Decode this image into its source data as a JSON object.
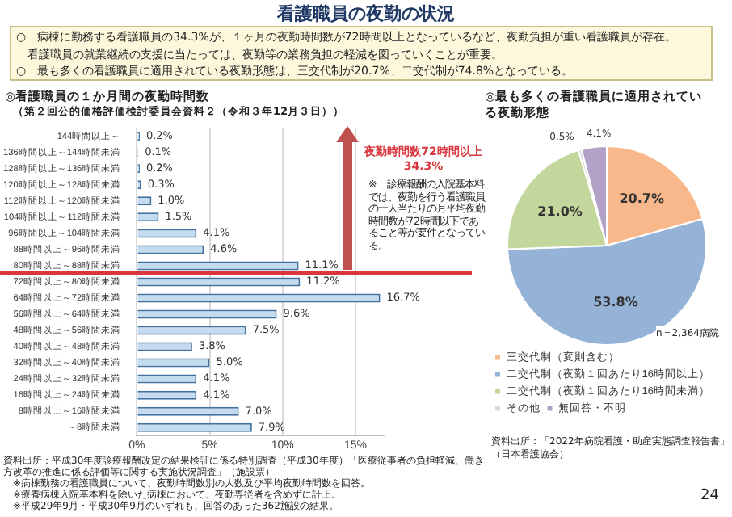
{
  "chart_data": [
    {
      "type": "other",
      "title": "看護職員の夜勤の状況",
      "annotations": [
        "○　病棟に勤務する看護職員の34.3%が、１ヶ月の夜勤時間数が72時間以上となっているなど、夜勤負担が重い看護職員が存在。",
        "　看護職員の就業継続の支援に当たっては、夜勤等の業務負担の軽減を図っていくことが重要。",
        "○　最も多くの看護職員に適用されている夜勤形態は、三交代制が20.7%、二交代制が74.8%となっている。",
        "24"
      ]
    },
    {
      "type": "bar",
      "orientation": "horizontal",
      "title": "◎看護職員の１か月間の夜勤時間数",
      "subtitle": "（第２回公的価格評価検討委員会資料２（令和３年12月３日））",
      "categories": [
        "144時間以上～",
        "136時間以上～144時間未満",
        "128時間以上～136時間未満",
        "120時間以上～128時間未満",
        "112時間以上～120時間未満",
        "104時間以上～112時間未満",
        "96時間以上～104時間未満",
        "88時間以上～96時間未満",
        "80時間以上～88時間未満",
        "72時間以上～80時間未満",
        "64時間以上～72時間未満",
        "56時間以上～64時間未満",
        "48時間以上～56時間未満",
        "40時間以上～48時間未満",
        "32時間以上～40時間未満",
        "24時間以上～32時間未満",
        "16時間以上～24時間未満",
        "8時間以上～16時間未満",
        "～8時間未満"
      ],
      "values": [
        0.2,
        0.1,
        0.2,
        0.3,
        1.0,
        1.5,
        4.1,
        4.6,
        11.1,
        11.2,
        16.7,
        9.6,
        7.5,
        3.8,
        5.0,
        4.1,
        4.1,
        7.0,
        7.9
      ],
      "value_labels": [
        "0.2%",
        "0.1%",
        "0.2%",
        "0.3%",
        "1.0%",
        "1.5%",
        "4.1%",
        "4.6%",
        "11.1%",
        "11.2%",
        "16.7%",
        "9.6%",
        "7.5%",
        "3.8%",
        "5.0%",
        "4.1%",
        "4.1%",
        "7.0%",
        "7.9%"
      ],
      "color": "#c5dcf0",
      "xlim": [
        0,
        17
      ],
      "xticks": [
        {
          "value": 0,
          "label": "0%"
        },
        {
          "value": 5,
          "label": "5%"
        },
        {
          "value": 10,
          "label": "10%"
        },
        {
          "value": 15,
          "label": "15%"
        }
      ],
      "grid": "x",
      "legend": false,
      "ref_lines": [
        {
          "axis": "y",
          "value": "80時間以上～88時間未満",
          "color": "#d9363e"
        }
      ],
      "annotations": [
        "夜勤時間数72時間以上\n34.3%",
        "※　診療報酬の入院基本料では、夜勤を行う看護職員の一人当たりの月平均夜勤時間数が72時間以下であること等が要件となっている。",
        "資料出所：平成30年度診療報酬改定の結果検証に係る特別調査（平成30年度）「医療従事者の負担軽減、働き方改革の推進に係る評価等に関する実施状況調査」（施設票）",
        "　※病棟勤務の看護職員について、夜勤時間数別の人数及び平均夜勤時間数を回答。",
        "　※療養病棟入院基本料を除いた病棟において、夜勤専従者を含めずに計上。",
        "　※平成29年9月・平成30年9月のいずれも、回答のあった362施設の結果。"
      ]
    },
    {
      "type": "pie",
      "title": "◎最も多くの看護職員に適用されている夜勤形態",
      "categories": [
        "三交代制（変則含む）",
        "二交代制（夜勤１回あたり16時間以上）",
        "二交代制（夜勤１回あたり16時間未満）",
        "その他",
        "無回答・不明"
      ],
      "values": [
        20.7,
        53.8,
        21.0,
        0.5,
        4.1
      ],
      "colors": [
        "#f8b88b",
        "#95b3d7",
        "#c3d69b",
        "#d9d9d9",
        "#b3a2c7"
      ],
      "value_labels": [
        "20.7%",
        "53.8%",
        "21.0%",
        "0.5%",
        "4.1%"
      ],
      "legend": "bottom",
      "annotations": [
        "n＝2,364病院",
        "資料出所：「2022年病院看護・助産実態調査報告書」（日本看護協会）"
      ]
    }
  ]
}
